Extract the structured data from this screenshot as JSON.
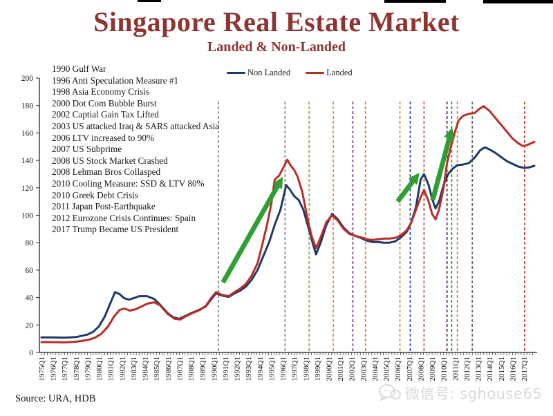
{
  "title": "Singapore Real Estate Market",
  "subtitle": "Landed & Non-Landed",
  "legend": {
    "non_landed": "Non Landed",
    "landed": "Landed"
  },
  "events": [
    "1990 Gulf War",
    "1996 Anti Speculation Measure #1",
    "1998 Asia Economy Crisis",
    "2000 Dot Com Bubble Burst",
    "2002 Captial Gain Tax Lifted",
    "2003 US attacked Iraq & SARS attacked Asia",
    "2006 LTV increased to 90%",
    "2007 US Subprime",
    "2008 US Stock Market Crashed",
    "2008 Lehman Bros Collasped",
    "2010 Cooling Measure: SSD & LTV 80%",
    "2010 Greek Debt Crisis",
    "2011 Japan Post-Earthquake",
    "2012 Eurozone Crisis Continues: Spain",
    "2017 Trump Became US President"
  ],
  "source": "Source: URA, HDB",
  "watermark": {
    "icon": "wechat-bubble-icon",
    "text": "微信号: sghouse65"
  },
  "colors": {
    "title": "#8e3431",
    "non_landed": "#1b3a69",
    "landed": "#b92e26",
    "arrow": "#2f9e33",
    "axis": "#222222",
    "watermark": "#d9d9d9"
  },
  "chart_data": {
    "type": "line",
    "title": "Singapore Real Estate Market — Landed & Non-Landed price index",
    "xlabel": "",
    "ylabel": "",
    "xlim": [
      1975,
      2018
    ],
    "ylim": [
      0,
      200
    ],
    "grid": false,
    "legend_position": "top",
    "y_ticks": [
      0,
      20,
      40,
      60,
      80,
      100,
      120,
      140,
      160,
      180,
      200
    ],
    "x_tick_labels": [
      "1975Q1",
      "1976Q1",
      "1977Q1",
      "1978Q1",
      "1979Q1",
      "1980Q1",
      "1981Q1",
      "1982Q1",
      "1983Q1",
      "1984Q1",
      "1985Q1",
      "1986Q1",
      "1987Q1",
      "1988Q1",
      "1989Q1",
      "1990Q1",
      "1991Q1",
      "1992Q1",
      "1993Q1",
      "1994Q1",
      "1995Q1",
      "1996Q1",
      "1997Q1",
      "1998Q1",
      "1999Q1",
      "2000Q1",
      "2001Q1",
      "2002Q1",
      "2003Q1",
      "2004Q1",
      "2005Q1",
      "2006Q1",
      "2007Q1",
      "2008Q1",
      "2009Q1",
      "2010Q1",
      "2011Q1",
      "2012Q1",
      "2013Q1",
      "2014Q1",
      "2015Q1",
      "2016Q1",
      "2017Q1"
    ],
    "series": [
      {
        "name": "Non Landed",
        "color": "#1b3a69",
        "points": [
          [
            1975,
            11
          ],
          [
            1976,
            11
          ],
          [
            1977,
            10.8
          ],
          [
            1978,
            11.2
          ],
          [
            1979,
            13
          ],
          [
            1979.5,
            15
          ],
          [
            1980,
            19
          ],
          [
            1980.5,
            26
          ],
          [
            1981,
            36
          ],
          [
            1981.4,
            44
          ],
          [
            1981.8,
            42.5
          ],
          [
            1982.2,
            39.5
          ],
          [
            1982.6,
            38.5
          ],
          [
            1983,
            39.5
          ],
          [
            1983.5,
            41
          ],
          [
            1984.2,
            41
          ],
          [
            1984.8,
            39
          ],
          [
            1985.3,
            35
          ],
          [
            1986,
            28.5
          ],
          [
            1986.5,
            25.5
          ],
          [
            1987,
            24.5
          ],
          [
            1987.5,
            26.5
          ],
          [
            1988,
            28.5
          ],
          [
            1988.7,
            31
          ],
          [
            1989.3,
            33.5
          ],
          [
            1989.8,
            39
          ],
          [
            1990.2,
            43
          ],
          [
            1990.7,
            41.5
          ],
          [
            1991.3,
            40.5
          ],
          [
            1991.8,
            43
          ],
          [
            1992.3,
            45
          ],
          [
            1992.8,
            48
          ],
          [
            1993.3,
            53
          ],
          [
            1993.8,
            60
          ],
          [
            1994.3,
            70
          ],
          [
            1994.8,
            80
          ],
          [
            1995.3,
            93
          ],
          [
            1995.8,
            104
          ],
          [
            1996.3,
            122
          ],
          [
            1996.6,
            119
          ],
          [
            1997,
            114
          ],
          [
            1997.4,
            111
          ],
          [
            1997.8,
            104
          ],
          [
            1998.2,
            92
          ],
          [
            1998.6,
            80
          ],
          [
            1998.9,
            71.5
          ],
          [
            1999.3,
            80
          ],
          [
            1999.8,
            93
          ],
          [
            2000.3,
            101
          ],
          [
            2000.8,
            97
          ],
          [
            2001.3,
            91
          ],
          [
            2001.8,
            87
          ],
          [
            2002.3,
            85
          ],
          [
            2002.8,
            83.5
          ],
          [
            2003.3,
            81.5
          ],
          [
            2003.8,
            80.5
          ],
          [
            2004.3,
            80.5
          ],
          [
            2004.8,
            80
          ],
          [
            2005.3,
            80
          ],
          [
            2005.8,
            81
          ],
          [
            2006.3,
            84
          ],
          [
            2006.8,
            88
          ],
          [
            2007.2,
            95
          ],
          [
            2007.6,
            106
          ],
          [
            2008,
            126
          ],
          [
            2008.3,
            130
          ],
          [
            2008.7,
            122
          ],
          [
            2009,
            112
          ],
          [
            2009.3,
            105
          ],
          [
            2009.6,
            110
          ],
          [
            2010,
            122
          ],
          [
            2010.4,
            130
          ],
          [
            2010.8,
            134
          ],
          [
            2011.2,
            136.5
          ],
          [
            2011.7,
            137
          ],
          [
            2012.2,
            138
          ],
          [
            2012.7,
            142
          ],
          [
            2013.2,
            147.5
          ],
          [
            2013.6,
            149.5
          ],
          [
            2014,
            148
          ],
          [
            2014.5,
            145.5
          ],
          [
            2015,
            142.5
          ],
          [
            2015.5,
            139.5
          ],
          [
            2016,
            137.5
          ],
          [
            2016.5,
            135.5
          ],
          [
            2017,
            134.5
          ],
          [
            2017.4,
            134.8
          ],
          [
            2017.9,
            136
          ]
        ]
      },
      {
        "name": "Landed",
        "color": "#b92e26",
        "points": [
          [
            1975,
            7.5
          ],
          [
            1976,
            7.5
          ],
          [
            1977,
            7.3
          ],
          [
            1978,
            7.8
          ],
          [
            1979,
            9
          ],
          [
            1979.6,
            10.5
          ],
          [
            1980.2,
            13.5
          ],
          [
            1980.8,
            19
          ],
          [
            1981.3,
            26
          ],
          [
            1981.8,
            31
          ],
          [
            1982.2,
            32
          ],
          [
            1982.7,
            30.5
          ],
          [
            1983.2,
            31.5
          ],
          [
            1983.7,
            33.5
          ],
          [
            1984.2,
            35.5
          ],
          [
            1984.8,
            36.5
          ],
          [
            1985.3,
            34.5
          ],
          [
            1986,
            28
          ],
          [
            1986.6,
            24.5
          ],
          [
            1987.1,
            24
          ],
          [
            1987.6,
            26.5
          ],
          [
            1988.1,
            28.5
          ],
          [
            1988.8,
            31
          ],
          [
            1989.3,
            34
          ],
          [
            1989.8,
            40
          ],
          [
            1990.2,
            44
          ],
          [
            1990.7,
            42
          ],
          [
            1991.3,
            41
          ],
          [
            1991.8,
            44
          ],
          [
            1992.3,
            46.5
          ],
          [
            1992.8,
            50
          ],
          [
            1993.3,
            56
          ],
          [
            1993.8,
            65
          ],
          [
            1994.2,
            78
          ],
          [
            1994.6,
            92
          ],
          [
            1995,
            108
          ],
          [
            1995.3,
            126
          ],
          [
            1995.7,
            129
          ],
          [
            1996,
            134
          ],
          [
            1996.4,
            140.5
          ],
          [
            1996.7,
            136
          ],
          [
            1997,
            133
          ],
          [
            1997.3,
            128
          ],
          [
            1997.7,
            117
          ],
          [
            1998.1,
            100
          ],
          [
            1998.5,
            85
          ],
          [
            1998.9,
            76
          ],
          [
            1999.3,
            84
          ],
          [
            1999.8,
            95
          ],
          [
            2000.3,
            100
          ],
          [
            2000.8,
            96
          ],
          [
            2001.3,
            90
          ],
          [
            2001.8,
            86.5
          ],
          [
            2002.3,
            85
          ],
          [
            2002.8,
            84
          ],
          [
            2003.3,
            82.5
          ],
          [
            2003.8,
            82
          ],
          [
            2004.3,
            82.5
          ],
          [
            2004.8,
            83
          ],
          [
            2005.3,
            83
          ],
          [
            2005.8,
            83.5
          ],
          [
            2006.3,
            85.5
          ],
          [
            2006.8,
            89
          ],
          [
            2007.2,
            95
          ],
          [
            2007.6,
            104
          ],
          [
            2008,
            113
          ],
          [
            2008.3,
            118.5
          ],
          [
            2008.7,
            110
          ],
          [
            2009,
            101
          ],
          [
            2009.3,
            97
          ],
          [
            2009.6,
            104
          ],
          [
            2010,
            120
          ],
          [
            2010.3,
            138
          ],
          [
            2010.7,
            152
          ],
          [
            2011,
            161
          ],
          [
            2011.3,
            169
          ],
          [
            2011.7,
            172.5
          ],
          [
            2012.2,
            174
          ],
          [
            2012.7,
            174.5
          ],
          [
            2013.1,
            177.5
          ],
          [
            2013.5,
            179.5
          ],
          [
            2014,
            176
          ],
          [
            2014.5,
            171
          ],
          [
            2015,
            166
          ],
          [
            2015.5,
            161
          ],
          [
            2016,
            156
          ],
          [
            2016.5,
            152.5
          ],
          [
            2016.9,
            150.5
          ],
          [
            2017.2,
            151
          ],
          [
            2017.5,
            152
          ],
          [
            2017.9,
            153.5
          ]
        ]
      }
    ],
    "event_lines": [
      {
        "year": 1990.4,
        "color": "#8a8a8a",
        "label": "1990"
      },
      {
        "year": 1996.2,
        "color": "#8a8a8a",
        "label": "1996"
      },
      {
        "year": 1998.3,
        "color": "#a0a048",
        "label": "1998"
      },
      {
        "year": 2000.4,
        "color": "#c89858",
        "label": "2000"
      },
      {
        "year": 2002.1,
        "color": "#9040a8",
        "label": "2002"
      },
      {
        "year": 2003.2,
        "color": "#d08030",
        "label": "2003"
      },
      {
        "year": 2006.2,
        "color": "#b0a048",
        "label": "2006"
      },
      {
        "year": 2007.1,
        "color": "#3048c0",
        "label": "2007"
      },
      {
        "year": 2008.3,
        "color": "#c05850",
        "label": "2008"
      },
      {
        "year": 2010.3,
        "color": "#6a3068",
        "label": "2010"
      },
      {
        "year": 2010.7,
        "color": "#28a028",
        "label": "2010"
      },
      {
        "year": 2011.2,
        "color": "#d07868",
        "label": "2011"
      },
      {
        "year": 2012.5,
        "color": "#686868",
        "label": "2012"
      },
      {
        "year": 2017.05,
        "color": "#cc4036",
        "label": "2017"
      }
    ],
    "arrows": [
      {
        "from": [
          1990.8,
          51
        ],
        "to": [
          1996.0,
          128
        ]
      },
      {
        "from": [
          2006.0,
          110
        ],
        "to": [
          2007.9,
          131
        ]
      },
      {
        "from": [
          2009.05,
          111
        ],
        "to": [
          2010.75,
          164
        ]
      }
    ]
  }
}
